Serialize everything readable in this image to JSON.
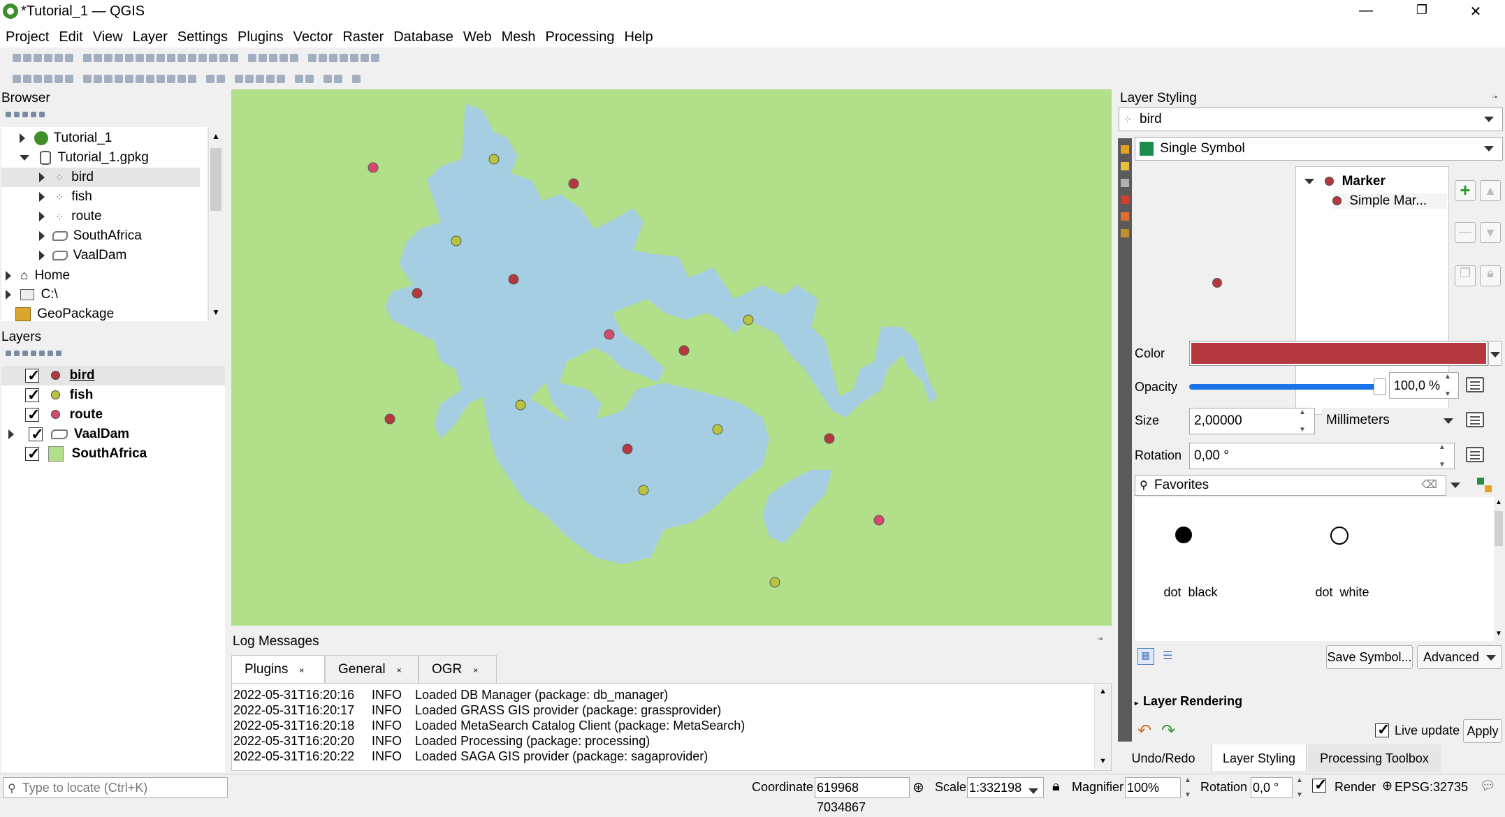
{
  "window": {
    "title": "*Tutorial_1 — QGIS",
    "controls": [
      "—",
      "❐",
      "✕"
    ]
  },
  "menu": [
    "Project",
    "Edit",
    "View",
    "Layer",
    "Settings",
    "Plugins",
    "Vector",
    "Raster",
    "Database",
    "Web",
    "Mesh",
    "Processing",
    "Help"
  ],
  "browser": {
    "title": "Browser",
    "items": [
      {
        "label": "Tutorial_1",
        "icon": "qgis-project-icon"
      },
      {
        "label": "Tutorial_1.gpkg",
        "icon": "database-icon"
      },
      {
        "label": "bird",
        "icon": "point-layer-icon"
      },
      {
        "label": "fish",
        "icon": "point-layer-icon"
      },
      {
        "label": "route",
        "icon": "point-layer-icon"
      },
      {
        "label": "SouthAfrica",
        "icon": "polygon-layer-icon"
      },
      {
        "label": "VaalDam",
        "icon": "polygon-layer-icon"
      },
      {
        "label": "Home",
        "icon": "home-icon"
      },
      {
        "label": "C:\\",
        "icon": "drive-icon"
      },
      {
        "label": "GeoPackage",
        "icon": "geopackage-icon"
      }
    ]
  },
  "layers": {
    "title": "Layers",
    "items": [
      {
        "label": "bird",
        "checked": true,
        "color": "#b5383f"
      },
      {
        "label": "fish",
        "checked": true,
        "color": "#b8c43f"
      },
      {
        "label": "route",
        "checked": true,
        "color": "#d6496e"
      },
      {
        "label": "VaalDam",
        "checked": true,
        "color": "#a6cee3"
      },
      {
        "label": "SouthAfrica",
        "checked": true,
        "color": "#b2df8a"
      }
    ]
  },
  "colors": {
    "land": "#b2df8a",
    "water": "#a6cee3",
    "bird": "#b5383f",
    "fish": "#b8c43f",
    "route": "#d6496e",
    "accent_blue": "#1a73e8"
  },
  "log": {
    "title": "Log Messages",
    "tabs": [
      "Plugins",
      "General",
      "OGR"
    ],
    "lines": [
      {
        "ts": "2022-05-31T16:20:16",
        "level": "INFO",
        "msg": "Loaded DB Manager (package: db_manager)"
      },
      {
        "ts": "2022-05-31T16:20:17",
        "level": "INFO",
        "msg": "Loaded GRASS GIS provider (package: grassprovider)"
      },
      {
        "ts": "2022-05-31T16:20:18",
        "level": "INFO",
        "msg": "Loaded MetaSearch Catalog Client (package: MetaSearch)"
      },
      {
        "ts": "2022-05-31T16:20:20",
        "level": "INFO",
        "msg": "Loaded Processing (package: processing)"
      },
      {
        "ts": "2022-05-31T16:20:22",
        "level": "INFO",
        "msg": "Loaded SAGA GIS provider (package: sagaprovider)"
      }
    ]
  },
  "styling": {
    "title": "Layer Styling",
    "layer": "bird",
    "renderer": "Single Symbol",
    "tree": {
      "root": "Marker",
      "child": "Simple Mar..."
    },
    "color_label": "Color",
    "color_value": "#b5383f",
    "opacity_label": "Opacity",
    "opacity_value": "100,0 %",
    "opacity_fraction": 1.0,
    "size_label": "Size",
    "size_value": "2,00000",
    "size_unit": "Millimeters",
    "rotation_label": "Rotation",
    "rotation_value": "0,00 °",
    "search_value": "Favorites",
    "symbols": [
      {
        "label": "dot  black",
        "fill": "#000000"
      },
      {
        "label": "dot  white",
        "fill": "#ffffff"
      }
    ],
    "save_symbol": "Save Symbol...",
    "advanced": "Advanced",
    "layer_rendering": "Layer Rendering",
    "live_update": "Live update",
    "apply": "Apply"
  },
  "bottom_tabs": [
    "Undo/Redo",
    "Layer Styling",
    "Processing Toolbox"
  ],
  "status": {
    "locate_placeholder": "Type to locate (Ctrl+K)",
    "coordinate_label": "Coordinate",
    "coordinate_value": "619968 7034867",
    "scale_label": "Scale",
    "scale_value": "1:332198",
    "magnifier_label": "Magnifier",
    "magnifier_value": "100%",
    "rotation_label": "Rotation",
    "rotation_value": "0,0 °",
    "render_label": "Render",
    "crs": "EPSG:32735"
  }
}
